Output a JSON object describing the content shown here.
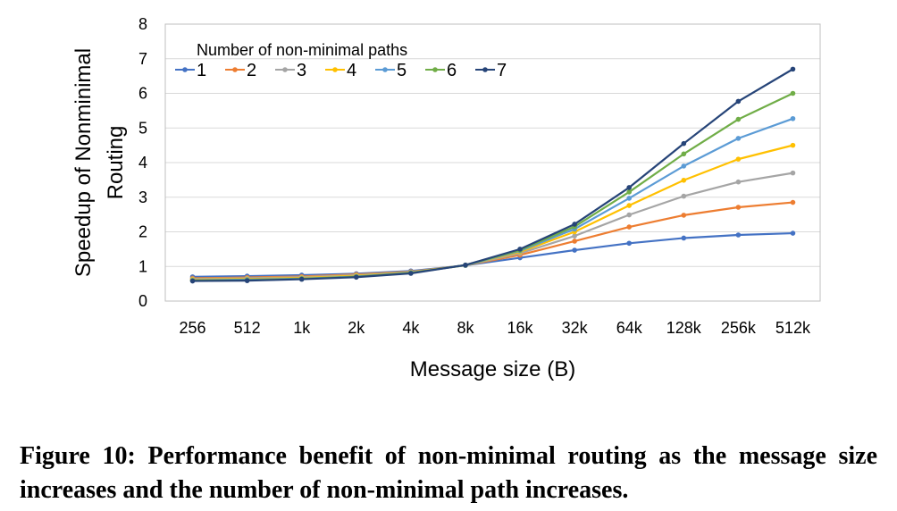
{
  "chart_data": {
    "type": "line",
    "title": "",
    "xlabel": "Message size (B)",
    "ylabel_lines": [
      "Speedup of Nonminimal",
      "Routing"
    ],
    "ylim": [
      0,
      8
    ],
    "yticks": [
      0,
      1,
      2,
      3,
      4,
      5,
      6,
      7,
      8
    ],
    "grid": "horizontal",
    "legend_title": "Number of non-minimal paths",
    "legend_position": "top-left",
    "categories": [
      "256",
      "512",
      "1k",
      "2k",
      "4k",
      "8k",
      "16k",
      "32k",
      "64k",
      "128k",
      "256k",
      "512k"
    ],
    "series": [
      {
        "name": "1",
        "color": "#4472C4",
        "values": [
          0.7,
          0.72,
          0.75,
          0.79,
          0.87,
          1.03,
          1.25,
          1.47,
          1.67,
          1.82,
          1.91,
          1.96
        ]
      },
      {
        "name": "2",
        "color": "#ED7D31",
        "values": [
          0.66,
          0.68,
          0.71,
          0.77,
          0.85,
          1.03,
          1.33,
          1.73,
          2.14,
          2.48,
          2.71,
          2.85
        ]
      },
      {
        "name": "3",
        "color": "#A5A5A5",
        "values": [
          0.64,
          0.66,
          0.69,
          0.75,
          0.84,
          1.03,
          1.38,
          1.88,
          2.49,
          3.03,
          3.44,
          3.7
        ]
      },
      {
        "name": "4",
        "color": "#FFC000",
        "values": [
          0.62,
          0.64,
          0.67,
          0.73,
          0.83,
          1.03,
          1.42,
          2.0,
          2.76,
          3.49,
          4.1,
          4.5
        ]
      },
      {
        "name": "5",
        "color": "#5B9BD5",
        "values": [
          0.6,
          0.62,
          0.65,
          0.71,
          0.82,
          1.03,
          1.45,
          2.08,
          2.97,
          3.9,
          4.7,
          5.27
        ]
      },
      {
        "name": "6",
        "color": "#70AD47",
        "values": [
          0.59,
          0.6,
          0.64,
          0.7,
          0.81,
          1.04,
          1.47,
          2.15,
          3.15,
          4.25,
          5.25,
          6.0
        ]
      },
      {
        "name": "7",
        "color": "#264478",
        "values": [
          0.58,
          0.59,
          0.63,
          0.69,
          0.8,
          1.04,
          1.5,
          2.22,
          3.28,
          4.55,
          5.77,
          6.7
        ]
      }
    ]
  },
  "caption": {
    "label": "Figure 10:",
    "text": "Performance benefit of non-minimal routing as the message size increases and the number of non-minimal path increases."
  }
}
